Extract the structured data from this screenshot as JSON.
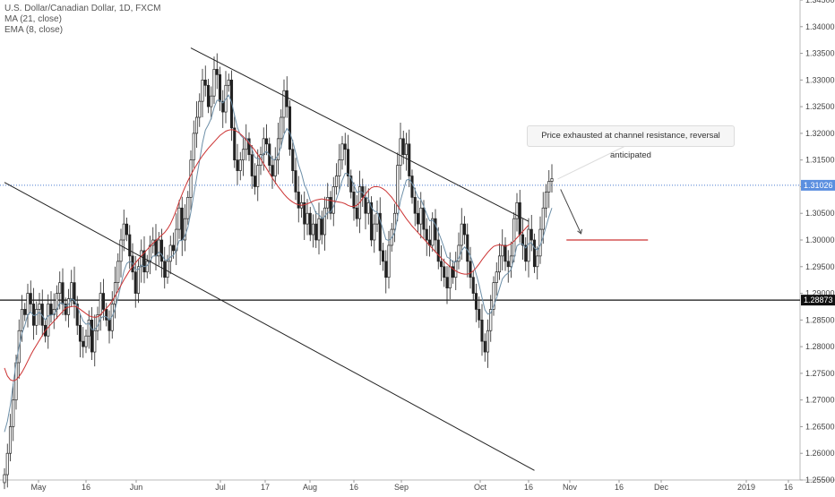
{
  "legend": {
    "symbol": "U.S. Dollar/Canadian Dollar, 1D, FXCM",
    "ma": "MA (21, close)",
    "ema": "EMA (8, close)"
  },
  "annotation": {
    "text": "Price exhausted at channel resistance, reversal anticipated"
  },
  "price_badges": {
    "current": "1.31026",
    "support": "1.28873"
  },
  "colors": {
    "up": "#ffffff",
    "down": "#222222",
    "ma": "#cc3333",
    "ema": "#6d8fa8",
    "price_line": "#4a7bd0",
    "target": "#cc3333",
    "support_line": "#111111"
  },
  "chart_data": {
    "type": "candlestick",
    "ylim": [
      1.255,
      1.345
    ],
    "y_ticks": [
      "1.25500",
      "1.26000",
      "1.26500",
      "1.27000",
      "1.27500",
      "1.28000",
      "1.28500",
      "1.29000",
      "1.29500",
      "1.30000",
      "1.30500",
      "1.31000",
      "1.31500",
      "1.32000",
      "1.32500",
      "1.33000",
      "1.33500",
      "1.34000",
      "1.34500"
    ],
    "x_ticks": [
      "May",
      "16",
      "Jun",
      "Jul",
      "17",
      "Aug",
      "16",
      "Sep",
      "Oct",
      "16",
      "Nov",
      "16",
      "Dec",
      "2019",
      "16"
    ],
    "grid": false,
    "close": [
      1.256,
      1.26,
      1.265,
      1.27,
      1.277,
      1.283,
      1.287,
      1.286,
      1.29,
      1.288,
      1.284,
      1.287,
      1.288,
      1.284,
      1.282,
      1.288,
      1.286,
      1.287,
      1.29,
      1.292,
      1.288,
      1.286,
      1.289,
      1.292,
      1.288,
      1.284,
      1.281,
      1.28,
      1.282,
      1.285,
      1.279,
      1.283,
      1.286,
      1.29,
      1.287,
      1.285,
      1.283,
      1.288,
      1.292,
      1.296,
      1.3,
      1.303,
      1.301,
      1.297,
      1.294,
      1.29,
      1.295,
      1.298,
      1.294,
      1.296,
      1.299,
      1.3,
      1.297,
      1.3,
      1.296,
      1.293,
      1.296,
      1.299,
      1.298,
      1.302,
      1.306,
      1.3,
      1.304,
      1.308,
      1.315,
      1.32,
      1.323,
      1.326,
      1.33,
      1.329,
      1.325,
      1.327,
      1.332,
      1.331,
      1.326,
      1.324,
      1.329,
      1.33,
      1.321,
      1.315,
      1.313,
      1.315,
      1.317,
      1.319,
      1.316,
      1.312,
      1.31,
      1.314,
      1.316,
      1.319,
      1.318,
      1.314,
      1.312,
      1.315,
      1.319,
      1.323,
      1.328,
      1.325,
      1.317,
      1.313,
      1.309,
      1.306,
      1.307,
      1.303,
      1.305,
      1.301,
      1.303,
      1.3,
      1.304,
      1.301,
      1.306,
      1.308,
      1.305,
      1.31,
      1.312,
      1.315,
      1.318,
      1.317,
      1.312,
      1.309,
      1.306,
      1.304,
      1.31,
      1.308,
      1.305,
      1.307,
      1.3,
      1.303,
      1.305,
      1.298,
      1.296,
      1.293,
      1.299,
      1.302,
      1.305,
      1.314,
      1.319,
      1.316,
      1.318,
      1.312,
      1.308,
      1.305,
      1.303,
      1.306,
      1.302,
      1.3,
      1.299,
      1.304,
      1.3,
      1.296,
      1.295,
      1.293,
      1.291,
      1.295,
      1.293,
      1.296,
      1.299,
      1.303,
      1.301,
      1.296,
      1.293,
      1.29,
      1.287,
      1.285,
      1.281,
      1.279,
      1.283,
      1.287,
      1.292,
      1.294,
      1.297,
      1.299,
      1.296,
      1.295,
      1.297,
      1.304,
      1.307,
      1.301,
      1.299,
      1.296,
      1.302,
      1.3,
      1.295,
      1.297,
      1.302,
      1.306,
      1.309,
      1.311,
      1.3115
    ],
    "ma_21": [
      1.276,
      1.2745,
      1.2738,
      1.2736,
      1.2738,
      1.2744,
      1.2752,
      1.2762,
      1.2773,
      1.2784,
      1.2794,
      1.2803,
      1.2812,
      1.2821,
      1.283,
      1.2836,
      1.2842,
      1.2848,
      1.2854,
      1.286,
      1.2866,
      1.2872,
      1.2874,
      1.2875,
      1.2876,
      1.2874,
      1.287,
      1.2866,
      1.2862,
      1.2858,
      1.2856,
      1.2855,
      1.2856,
      1.286,
      1.2866,
      1.2872,
      1.2878,
      1.2886,
      1.2895,
      1.2905,
      1.2915,
      1.2925,
      1.2934,
      1.2943,
      1.295,
      1.2957,
      1.2964,
      1.297,
      1.2976,
      1.2982,
      1.2988,
      1.2994,
      1.2999,
      1.3004,
      1.3009,
      1.3014,
      1.3021,
      1.303,
      1.3042,
      1.3056,
      1.3072,
      1.3086,
      1.3099,
      1.3111,
      1.3122,
      1.3132,
      1.3141,
      1.315,
      1.3158,
      1.3165,
      1.3172,
      1.3178,
      1.3184,
      1.319,
      1.3196,
      1.32,
      1.3204,
      1.3206,
      1.3207,
      1.3206,
      1.3203,
      1.3199,
      1.3194,
      1.3188,
      1.3181,
      1.3175,
      1.3168,
      1.316,
      1.3152,
      1.3143,
      1.3134,
      1.3125,
      1.3116,
      1.3108,
      1.31,
      1.3093,
      1.3086,
      1.308,
      1.3075,
      1.3071,
      1.3068,
      1.3066,
      1.3065,
      1.3066,
      1.3068,
      1.307,
      1.3073,
      1.3075,
      1.3076,
      1.3077,
      1.3076,
      1.3075,
      1.3074,
      1.3073,
      1.3072,
      1.3071,
      1.307,
      1.3068,
      1.3065,
      1.3063,
      1.3063,
      1.3065,
      1.307,
      1.3078,
      1.3086,
      1.3093,
      1.3098,
      1.31,
      1.31,
      1.3099,
      1.3096,
      1.3092,
      1.3086,
      1.308,
      1.3072,
      1.3064,
      1.3056,
      1.3048,
      1.304,
      1.3033,
      1.3026,
      1.302,
      1.3014,
      1.3008,
      1.3002,
      1.2996,
      1.299,
      1.2984,
      1.2978,
      1.2972,
      1.2966,
      1.296,
      1.2955,
      1.295,
      1.2946,
      1.2942,
      1.2939,
      1.2937,
      1.2936,
      1.2936,
      1.2938,
      1.2942,
      1.2948,
      1.2955,
      1.2963,
      1.297,
      1.2977,
      1.2983,
      1.2988,
      1.299,
      1.2991,
      1.299,
      1.2988,
      1.299,
      1.2993,
      1.2998,
      1.3004,
      1.301,
      1.3016,
      1.3022,
      1.3028
    ],
    "ema_8": [
      1.264,
      1.266,
      1.269,
      1.273,
      1.277,
      1.28,
      1.2825,
      1.284,
      1.286,
      1.2865,
      1.2858,
      1.286,
      1.2865,
      1.2858,
      1.285,
      1.2858,
      1.2859,
      1.2861,
      1.287,
      1.2882,
      1.2881,
      1.2876,
      1.2879,
      1.289,
      1.2887,
      1.2876,
      1.2861,
      1.2848,
      1.2842,
      1.2844,
      1.2832,
      1.2832,
      1.2839,
      1.2853,
      1.2857,
      1.2856,
      1.285,
      1.2857,
      1.2871,
      1.2892,
      1.2916,
      1.2941,
      1.2956,
      1.296,
      1.2956,
      1.2944,
      1.2945,
      1.2953,
      1.295,
      1.2952,
      1.2961,
      1.297,
      1.297,
      1.2977,
      1.2973,
      1.2963,
      1.2962,
      1.2968,
      1.2971,
      1.2981,
      1.2999,
      1.2999,
      1.3008,
      1.3024,
      1.3052,
      1.3085,
      1.3117,
      1.3149,
      1.3182,
      1.3206,
      1.3216,
      1.3228,
      1.3248,
      1.3262,
      1.3262,
      1.3257,
      1.3264,
      1.3272,
      1.3258,
      1.3234,
      1.3211,
      1.3197,
      1.3191,
      1.3191,
      1.3184,
      1.317,
      1.3155,
      1.3152,
      1.3154,
      1.3162,
      1.3166,
      1.316,
      1.3151,
      1.3151,
      1.316,
      1.3175,
      1.3198,
      1.3209,
      1.3201,
      1.3185,
      1.3164,
      1.3141,
      1.3125,
      1.3104,
      1.3092,
      1.3074,
      1.3064,
      1.305,
      1.3048,
      1.304,
      1.3044,
      1.3052,
      1.3052,
      1.3063,
      1.3076,
      1.3093,
      1.3112,
      1.3125,
      1.3124,
      1.3116,
      1.3103,
      1.3089,
      1.3091,
      1.3089,
      1.308,
      1.3078,
      1.3061,
      1.3054,
      1.3053,
      1.3037,
      1.302,
      1.3001,
      1.2999,
      1.3004,
      1.3014,
      1.3042,
      1.3074,
      1.3093,
      1.3112,
      1.3114,
      1.3106,
      1.3094,
      1.308,
      1.3076,
      1.3063,
      1.3049,
      1.3036,
      1.3037,
      1.3029,
      1.3015,
      1.3001,
      1.2985,
      1.2968,
      1.2965,
      1.2958,
      1.2959,
      1.2966,
      1.298,
      1.2987,
      1.2981,
      1.297,
      1.2955,
      1.2936,
      1.2916,
      1.2892,
      1.2869,
      1.2861,
      1.2863,
      1.2876,
      1.2891,
      1.2909,
      1.2927,
      1.2934,
      1.2938,
      1.2945,
      1.2966,
      1.2989,
      1.2993,
      1.2992,
      1.2985,
      1.2993,
      1.2995,
      1.2985,
      1.2981,
      1.299,
      1.3006,
      1.3025,
      1.3044,
      1.306
    ],
    "current_price": 1.31026,
    "support_level": 1.28873,
    "target_level": 1.3,
    "channel_upper": [
      [
        64,
        1.336
      ],
      [
        180,
        1.3035
      ]
    ],
    "channel_lower": [
      [
        0,
        1.3108
      ],
      [
        182,
        1.2568
      ]
    ],
    "arrow_from_price": 1.3095,
    "arrow_to_price": 1.3012
  }
}
